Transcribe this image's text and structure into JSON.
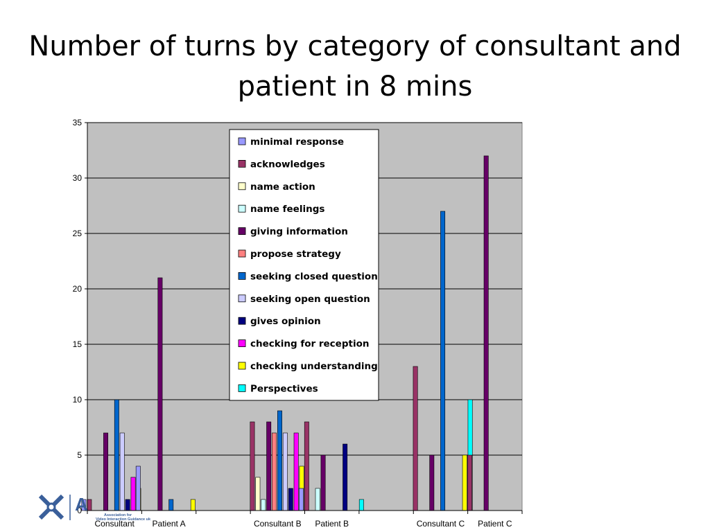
{
  "slide": {
    "title": "Number of turns by category of consultant and patient in 8 mins"
  },
  "logo": {
    "icon": "association-logo-icon",
    "letter": "A",
    "line1": "Association for",
    "line2": "Video Interaction Guidance uk",
    "color": "#3a5f9a"
  },
  "chart_data": {
    "type": "bar",
    "title": "",
    "xlabel": "",
    "ylabel": "",
    "ylim": [
      0,
      35
    ],
    "y_ticks": [
      0,
      5,
      10,
      15,
      20,
      25,
      30,
      35
    ],
    "grid": true,
    "background": "#c0c0c0",
    "legend_position": "top-center",
    "categories": [
      "Consultant",
      "Patient A",
      "Consultant B",
      "Patient B",
      "Consultant C",
      "Patient C"
    ],
    "series": [
      {
        "name": "minimal response",
        "color": "#9999ff",
        "values": [
          1,
          4,
          0,
          2,
          0,
          0
        ]
      },
      {
        "name": "acknowledges",
        "color": "#993366",
        "values": [
          1,
          0,
          8,
          8,
          13,
          5
        ]
      },
      {
        "name": "name action",
        "color": "#ffffcc",
        "values": [
          0,
          0,
          3,
          0,
          0,
          0
        ]
      },
      {
        "name": "name feelings",
        "color": "#ccffff",
        "values": [
          0,
          0,
          1,
          2,
          0,
          0
        ]
      },
      {
        "name": "giving information",
        "color": "#660066",
        "values": [
          7,
          21,
          8,
          5,
          5,
          32
        ]
      },
      {
        "name": "propose strategy",
        "color": "#ff8080",
        "values": [
          0,
          0,
          7,
          0,
          0,
          0
        ]
      },
      {
        "name": "seeking closed question",
        "color": "#0066cc",
        "values": [
          10,
          1,
          9,
          0,
          27,
          0
        ]
      },
      {
        "name": "seeking open question",
        "color": "#ccccff",
        "values": [
          7,
          0,
          7,
          0,
          0,
          0
        ]
      },
      {
        "name": "gives opinion",
        "color": "#000080",
        "values": [
          1,
          0,
          2,
          6,
          0,
          0
        ]
      },
      {
        "name": "checking for reception",
        "color": "#ff00ff",
        "values": [
          3,
          0,
          7,
          0,
          0,
          0
        ]
      },
      {
        "name": "checking understanding",
        "color": "#ffff00",
        "values": [
          2,
          1,
          4,
          0,
          5,
          0
        ]
      },
      {
        "name": "Perspectives",
        "color": "#00ffff",
        "values": [
          0,
          0,
          0,
          1,
          10,
          0
        ]
      }
    ]
  }
}
